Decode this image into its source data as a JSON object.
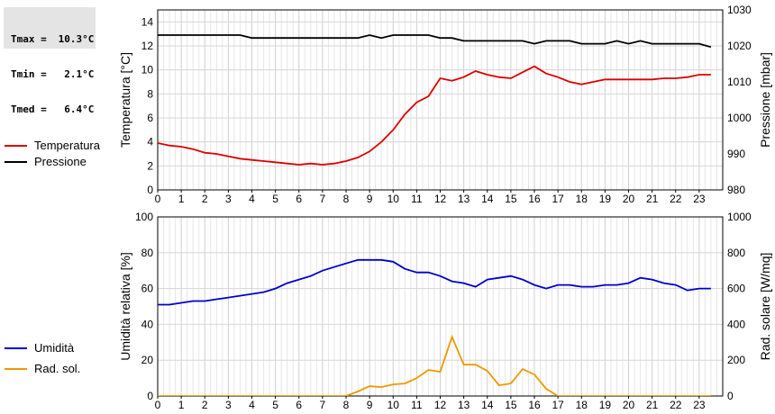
{
  "stats": [
    {
      "label": "Tmax",
      "value": "10.3°C"
    },
    {
      "label": "Tmin",
      "value": "2.1°C"
    },
    {
      "label": "Tmed",
      "value": "6.4°C"
    }
  ],
  "chart_data": [
    {
      "type": "line",
      "ylabel": "Temperatura [°C]",
      "ylabel_right": "Pressione [mbar]",
      "xlim": [
        0,
        24
      ],
      "ylim": [
        0,
        15
      ],
      "ylim_right": [
        980,
        1030
      ],
      "x_ticks": [
        0,
        1,
        2,
        3,
        4,
        5,
        6,
        7,
        8,
        9,
        10,
        11,
        12,
        13,
        14,
        15,
        16,
        17,
        18,
        19,
        20,
        21,
        22,
        23
      ],
      "y_ticks": [
        0,
        2,
        4,
        6,
        8,
        10,
        12,
        14
      ],
      "y_ticks_right": [
        980,
        990,
        1000,
        1010,
        1020,
        1030
      ],
      "grid": true,
      "legend_position": "left",
      "series": [
        {
          "name": "Temperatura",
          "axis": "left",
          "color": "#dd0000",
          "x": [
            0,
            0.5,
            1,
            1.5,
            2,
            2.5,
            3,
            3.5,
            4,
            4.5,
            5,
            5.5,
            6,
            6.5,
            7,
            7.5,
            8,
            8.5,
            9,
            9.5,
            10,
            10.5,
            11,
            11.5,
            12,
            12.5,
            13,
            13.5,
            14,
            14.5,
            15,
            15.5,
            16,
            16.5,
            17,
            17.5,
            18,
            18.5,
            19,
            19.5,
            20,
            20.5,
            21,
            21.5,
            22,
            22.5,
            23,
            23.5
          ],
          "y": [
            3.9,
            3.7,
            3.6,
            3.4,
            3.1,
            3.0,
            2.8,
            2.6,
            2.5,
            2.4,
            2.3,
            2.2,
            2.1,
            2.2,
            2.1,
            2.2,
            2.4,
            2.7,
            3.2,
            4.0,
            5.0,
            6.3,
            7.3,
            7.8,
            9.3,
            9.1,
            9.4,
            9.9,
            9.6,
            9.4,
            9.3,
            9.8,
            10.3,
            9.7,
            9.4,
            9.0,
            8.8,
            9.0,
            9.2,
            9.2,
            9.2,
            9.2,
            9.2,
            9.3,
            9.3,
            9.4,
            9.6,
            9.6
          ]
        },
        {
          "name": "Pressione",
          "axis": "right",
          "color": "#000000",
          "x": [
            0,
            0.5,
            1,
            1.5,
            2,
            2.5,
            3,
            3.5,
            4,
            4.5,
            5,
            5.5,
            6,
            6.5,
            7,
            7.5,
            8,
            8.5,
            9,
            9.5,
            10,
            10.5,
            11,
            11.5,
            12,
            12.5,
            13,
            13.5,
            14,
            14.5,
            15,
            15.5,
            16,
            16.5,
            17,
            17.5,
            18,
            18.5,
            19,
            19.5,
            20,
            20.5,
            21,
            21.5,
            22,
            22.5,
            23,
            23.5
          ],
          "y": [
            1023,
            1023,
            1023,
            1023,
            1023,
            1023,
            1023,
            1023,
            1022.2,
            1022.2,
            1022.2,
            1022.2,
            1022.2,
            1022.2,
            1022.2,
            1022.2,
            1022.2,
            1022.2,
            1023,
            1022.2,
            1023,
            1023,
            1023,
            1023,
            1022.2,
            1022.2,
            1021.4,
            1021.4,
            1021.4,
            1021.4,
            1021.4,
            1021.4,
            1020.6,
            1021.4,
            1021.4,
            1021.4,
            1020.6,
            1020.6,
            1020.6,
            1021.4,
            1020.6,
            1021.4,
            1020.6,
            1020.6,
            1020.6,
            1020.6,
            1020.6,
            1019.7
          ]
        }
      ]
    },
    {
      "type": "line",
      "ylabel": "Umidità relativa [%]",
      "ylabel_right": "Rad. solare [W/mq]",
      "xlim": [
        0,
        24
      ],
      "ylim": [
        0,
        100
      ],
      "ylim_right": [
        0,
        1000
      ],
      "x_ticks": [
        0,
        1,
        2,
        3,
        4,
        5,
        6,
        7,
        8,
        9,
        10,
        11,
        12,
        13,
        14,
        15,
        16,
        17,
        18,
        19,
        20,
        21,
        22,
        23
      ],
      "y_ticks": [
        0,
        20,
        40,
        60,
        80,
        100
      ],
      "y_ticks_right": [
        0,
        200,
        400,
        600,
        800,
        1000
      ],
      "grid": true,
      "legend_position": "left",
      "series": [
        {
          "name": "Umidità",
          "axis": "left",
          "color": "#0000cc",
          "x": [
            0,
            0.5,
            1,
            1.5,
            2,
            2.5,
            3,
            3.5,
            4,
            4.5,
            5,
            5.5,
            6,
            6.5,
            7,
            7.5,
            8,
            8.5,
            9,
            9.5,
            10,
            10.5,
            11,
            11.5,
            12,
            12.5,
            13,
            13.5,
            14,
            14.5,
            15,
            15.5,
            16,
            16.5,
            17,
            17.5,
            18,
            18.5,
            19,
            19.5,
            20,
            20.5,
            21,
            21.5,
            22,
            22.5,
            23,
            23.5
          ],
          "y": [
            51,
            51,
            52,
            53,
            53,
            54,
            55,
            56,
            57,
            58,
            60,
            63,
            65,
            67,
            70,
            72,
            74,
            76,
            76,
            76,
            75,
            71,
            69,
            69,
            67,
            64,
            63,
            61,
            65,
            66,
            67,
            65,
            62,
            60,
            62,
            62,
            61,
            61,
            62,
            62,
            63,
            66,
            65,
            63,
            62,
            59,
            60,
            60
          ]
        },
        {
          "name": "Rad. sol.",
          "axis": "right",
          "color": "#ee9900",
          "x": [
            0,
            0.5,
            1,
            1.5,
            2,
            2.5,
            3,
            3.5,
            4,
            4.5,
            5,
            5.5,
            6,
            6.5,
            7,
            7.5,
            8,
            8.5,
            9,
            9.5,
            10,
            10.5,
            11,
            11.5,
            12,
            12.5,
            13,
            13.5,
            14,
            14.5,
            15,
            15.5,
            16,
            16.5,
            17,
            17.5,
            18,
            18.5,
            19,
            19.5,
            20,
            20.5,
            21,
            21.5,
            22,
            22.5,
            23,
            23.5
          ],
          "y": [
            0,
            0,
            0,
            0,
            0,
            0,
            0,
            0,
            0,
            0,
            0,
            0,
            0,
            0,
            0,
            0,
            0,
            25,
            55,
            50,
            65,
            70,
            100,
            145,
            135,
            330,
            175,
            175,
            140,
            60,
            70,
            150,
            120,
            40,
            0,
            0,
            0,
            0,
            0,
            0,
            0,
            0,
            0,
            0,
            0,
            0,
            0,
            0
          ]
        }
      ]
    }
  ]
}
